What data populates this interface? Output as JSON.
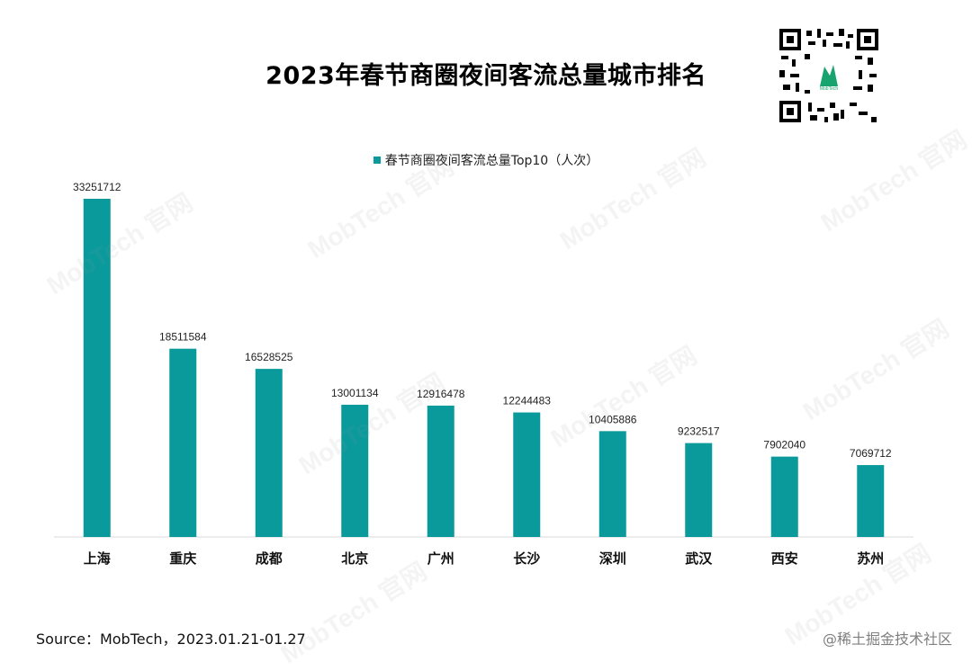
{
  "title": "2023年春节商圈夜间客流总量城市排名",
  "source": "Source：MobTech，2023.01.21-01.27",
  "credit": "@稀土掘金技术社区",
  "watermark": "MobTech 官网",
  "qr_label": "MobTech",
  "colors": {
    "bar": "#0b9a9c",
    "axis": "#d9d9d9"
  },
  "chart_data": {
    "type": "bar",
    "title": "2023年春节商圈夜间客流总量城市排名",
    "xlabel": "",
    "ylabel": "",
    "legend": "top",
    "grid": false,
    "categories": [
      "上海",
      "重庆",
      "成都",
      "北京",
      "广州",
      "长沙",
      "深圳",
      "武汉",
      "西安",
      "苏州"
    ],
    "series": [
      {
        "name": "春节商圈夜间客流总量Top10（人次）",
        "values": [
          33251712,
          18511584,
          16528525,
          13001134,
          12916478,
          12244483,
          10405886,
          9232517,
          7902040,
          7069712
        ]
      }
    ],
    "ylim": [
      0,
      33251712
    ]
  }
}
